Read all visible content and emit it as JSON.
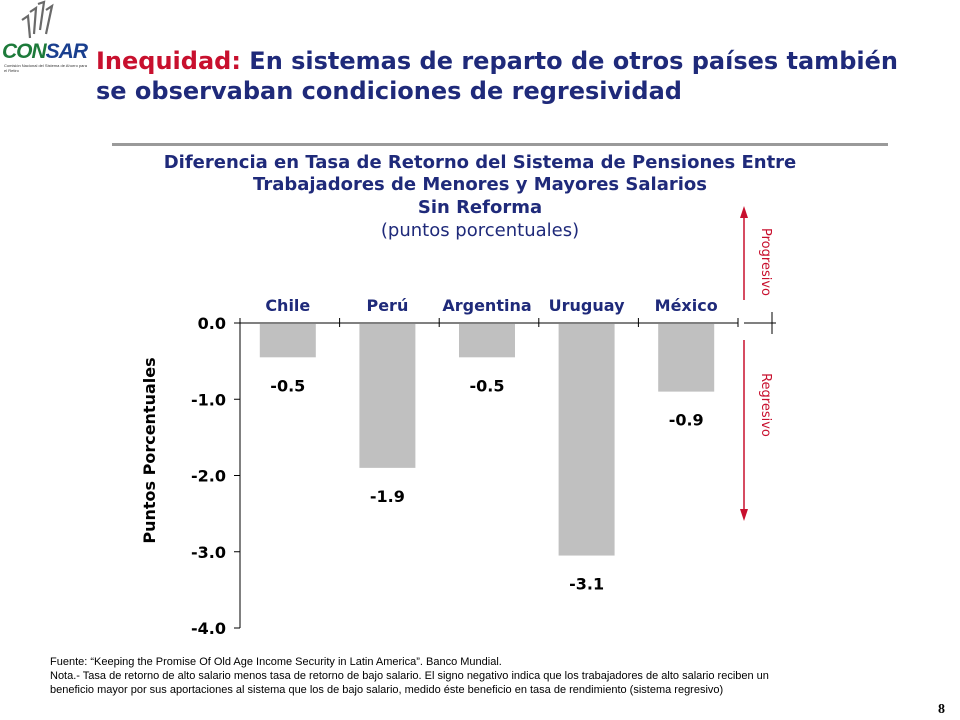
{
  "logo": {
    "word_a": "CON",
    "word_b": "SAR",
    "subtitle": "Comisión Nacional del Sistema de Ahorro para el Retiro"
  },
  "slide": {
    "title_red": "Inequidad:",
    "title_rest": " En sistemas de reparto de otros países también se observaban condiciones de regresividad",
    "page_number": "8"
  },
  "chart_data": {
    "type": "bar",
    "title": [
      "Diferencia en Tasa de Retorno del Sistema de Pensiones Entre",
      "Trabajadores de Menores y Mayores Salarios",
      "Sin Reforma"
    ],
    "subtitle": "(puntos porcentuales)",
    "ylabel": "Puntos Porcentuales",
    "xlabel": "",
    "categories": [
      "Chile",
      "Perú",
      "Argentina",
      "Uruguay",
      "México"
    ],
    "values": [
      -0.45,
      -1.9,
      -0.45,
      -3.05,
      -0.9
    ],
    "data_labels": [
      "-0.5",
      "-1.9",
      "-0.5",
      "-3.1",
      "-0.9"
    ],
    "yticks": [
      "0.0",
      "-1.0",
      "-2.0",
      "-3.0",
      "-4.0"
    ],
    "ylim": [
      -4.0,
      0.0
    ],
    "bar_color": "#c0c0c0",
    "grid": false,
    "annotations": {
      "up_label": "Progresivo",
      "down_label": "Regresivo",
      "color": "#c8102e"
    }
  },
  "footer": {
    "source": "Fuente:  “Keeping the Promise Of Old Age Income Security in Latin America”. Banco Mundial.",
    "note": "Nota.- Tasa de retorno de alto salario menos tasa de retorno de bajo salario. El signo negativo indica que los trabajadores de alto salario reciben un beneficio mayor por sus aportaciones al sistema que los de bajo salario, medido éste beneficio en tasa de rendimiento (sistema regresivo)"
  }
}
